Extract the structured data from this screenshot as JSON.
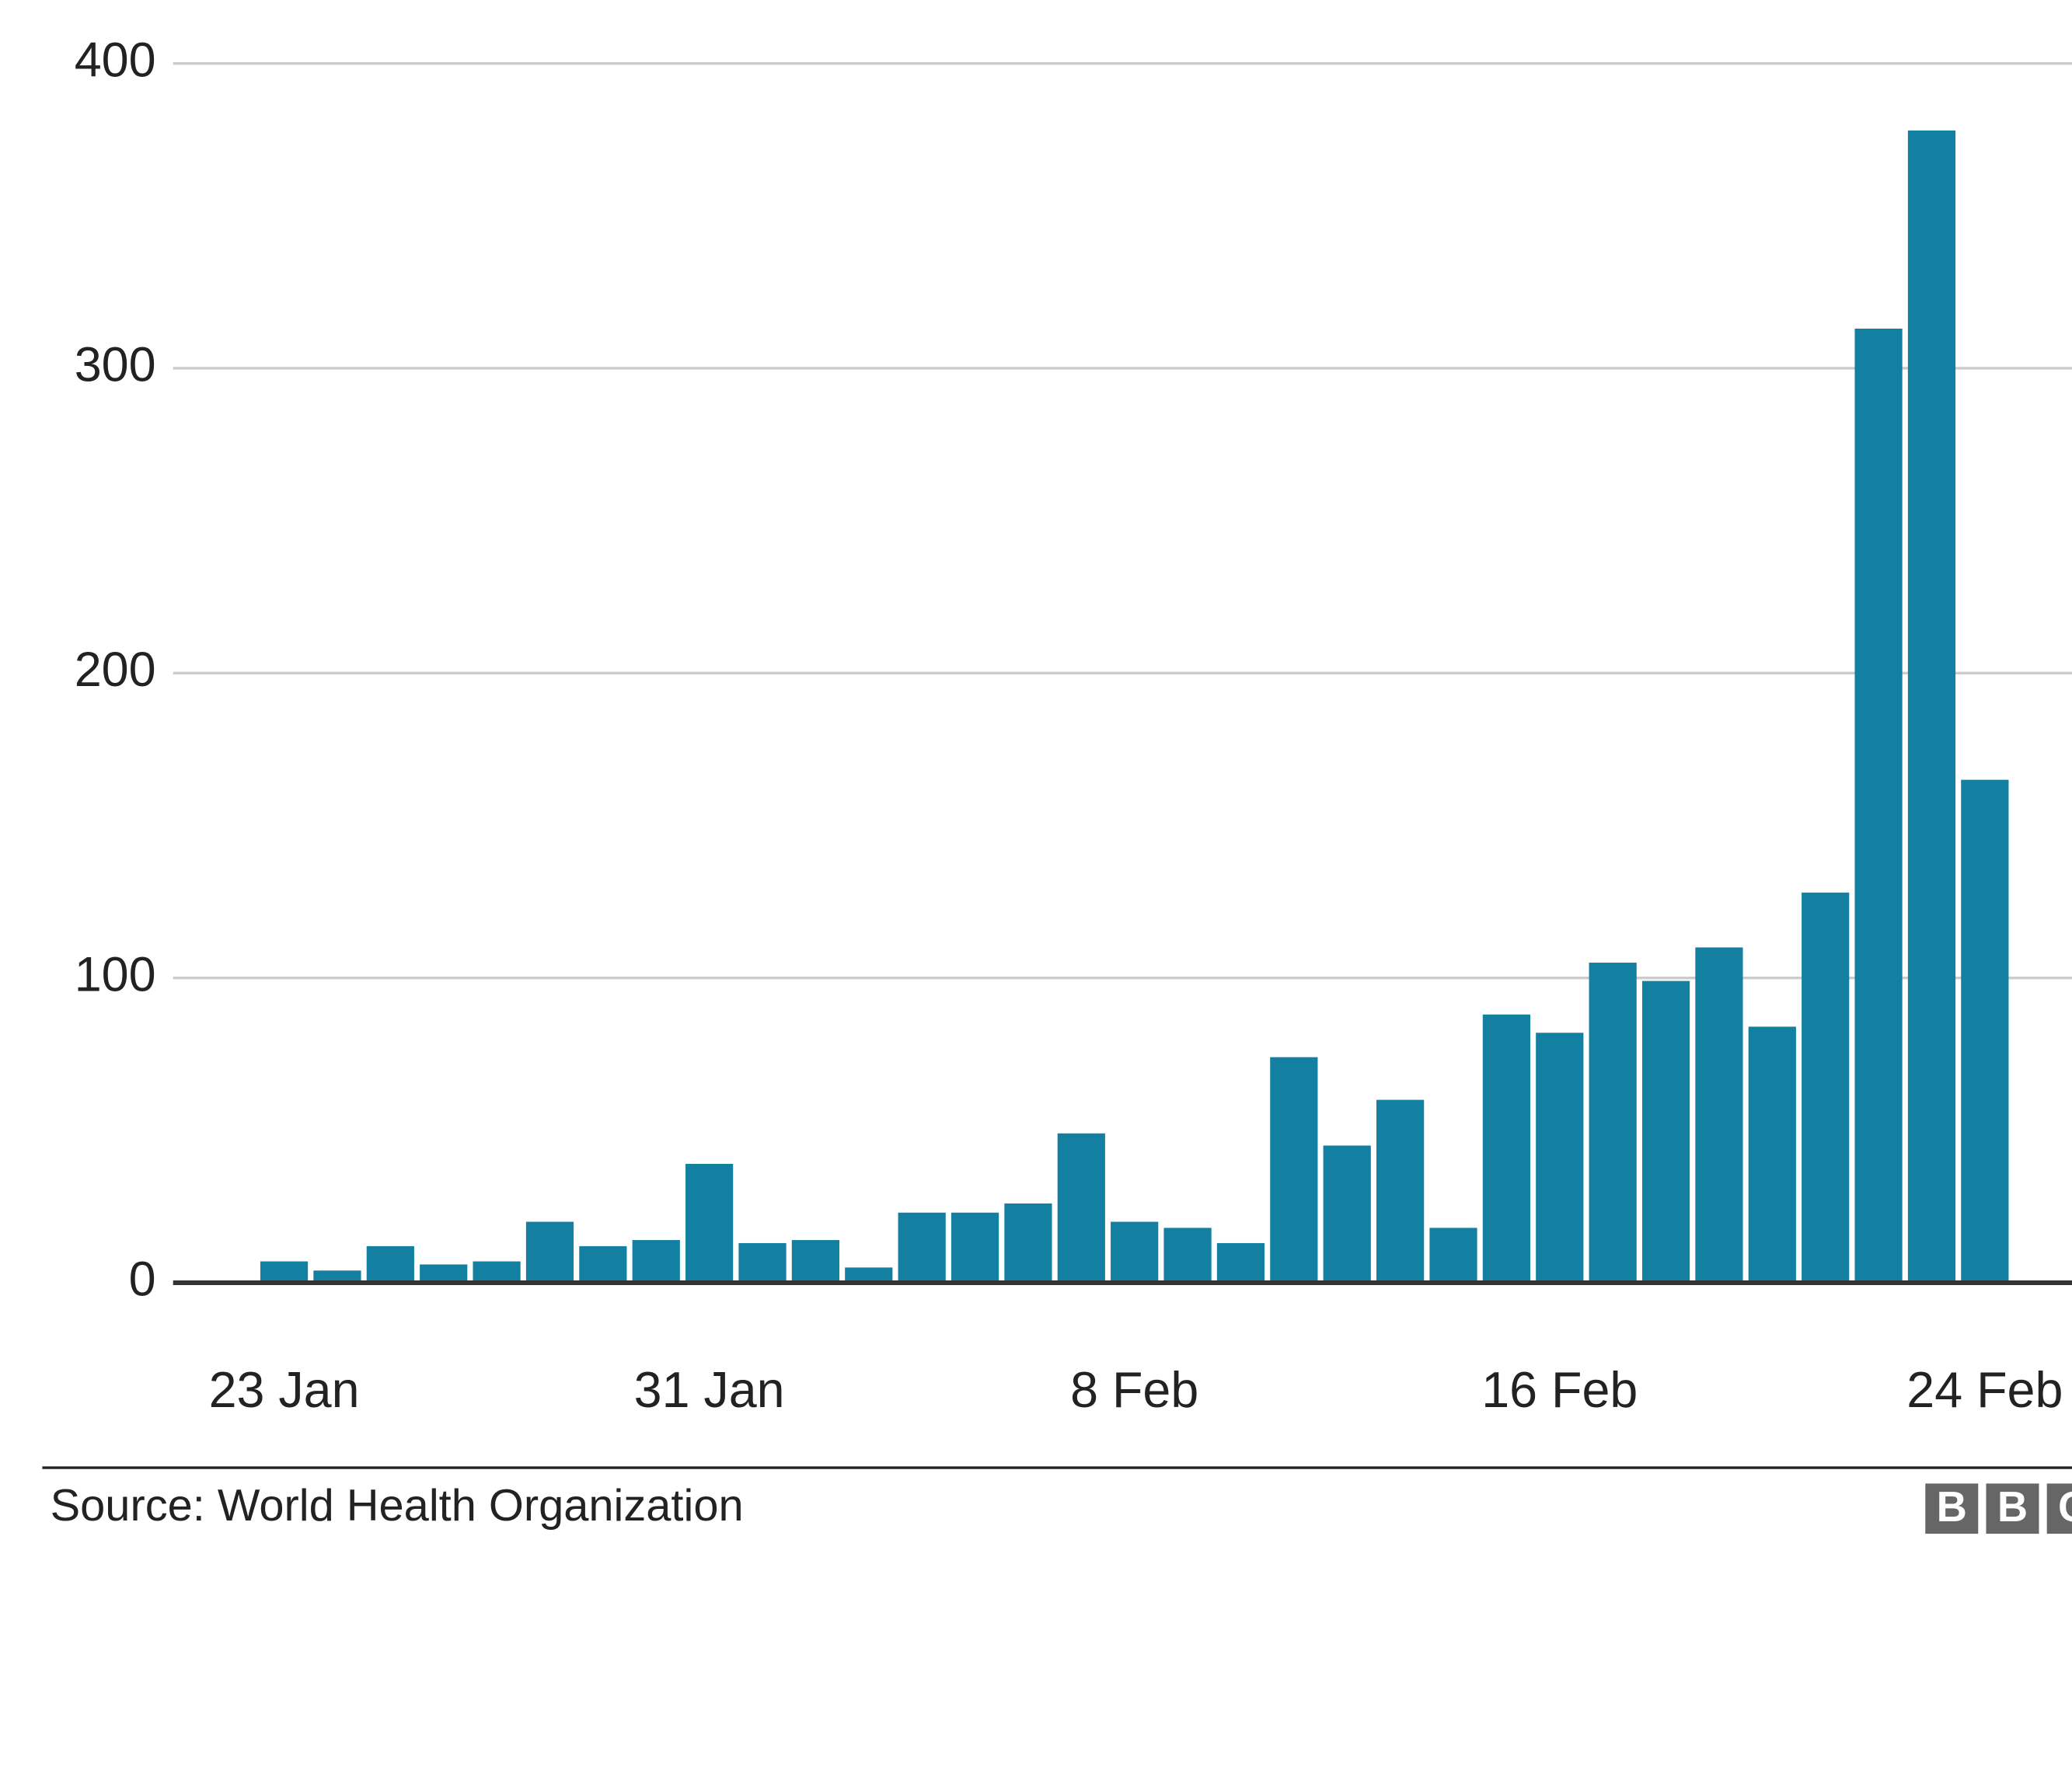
{
  "chart_data": {
    "type": "bar",
    "categories": [
      "23 Jan",
      null,
      null,
      null,
      null,
      null,
      null,
      null,
      "31 Jan",
      null,
      null,
      null,
      null,
      null,
      null,
      null,
      "8 Feb",
      null,
      null,
      null,
      null,
      null,
      null,
      null,
      "16 Feb",
      null,
      null,
      null,
      null,
      null,
      null,
      null,
      "24 Feb"
    ],
    "values": [
      7,
      4,
      12,
      6,
      7,
      20,
      12,
      14,
      39,
      13,
      14,
      5,
      23,
      23,
      26,
      49,
      20,
      18,
      13,
      74,
      45,
      60,
      18,
      88,
      82,
      105,
      99,
      110,
      84,
      128,
      313,
      378,
      165
    ],
    "color": "#1380a1",
    "ylim": [
      0,
      400
    ],
    "yticks": [
      0,
      100,
      200,
      300,
      400
    ],
    "grid": true,
    "source": "Source: World Health Organization",
    "logo_letters": [
      "B",
      "B",
      "C"
    ]
  }
}
